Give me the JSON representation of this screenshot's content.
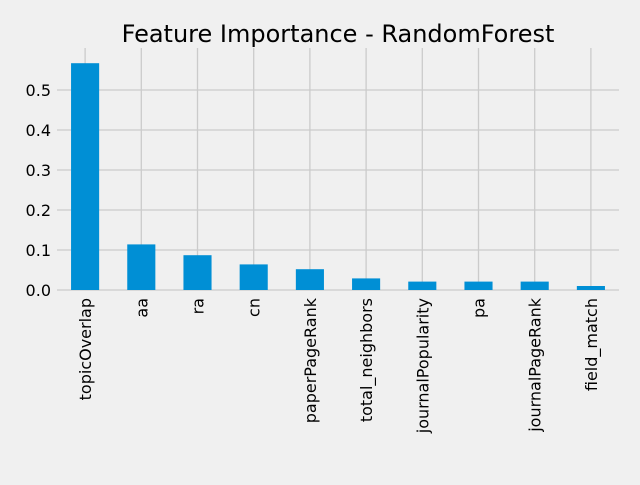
{
  "chart_data": {
    "type": "bar",
    "title": "Feature Importance - RandomForest",
    "xlabel": "",
    "ylabel": "",
    "categories": [
      "topicOverlap",
      "aa",
      "ra",
      "cn",
      "paperPageRank",
      "total_neighbors",
      "journalPopularity",
      "pa",
      "journalPageRank",
      "field_match"
    ],
    "values": [
      0.567,
      0.114,
      0.087,
      0.064,
      0.052,
      0.029,
      0.021,
      0.021,
      0.021,
      0.01
    ],
    "ylim": [
      0,
      0.59
    ],
    "yticks": [
      0.0,
      0.1,
      0.2,
      0.3,
      0.4,
      0.5
    ],
    "ytick_labels": [
      "0.0",
      "0.1",
      "0.2",
      "0.3",
      "0.4",
      "0.5"
    ],
    "grid": true,
    "bar_color": "#008fd5",
    "background_color": "#f0f0f0",
    "grid_color": "#cbcbcb"
  }
}
